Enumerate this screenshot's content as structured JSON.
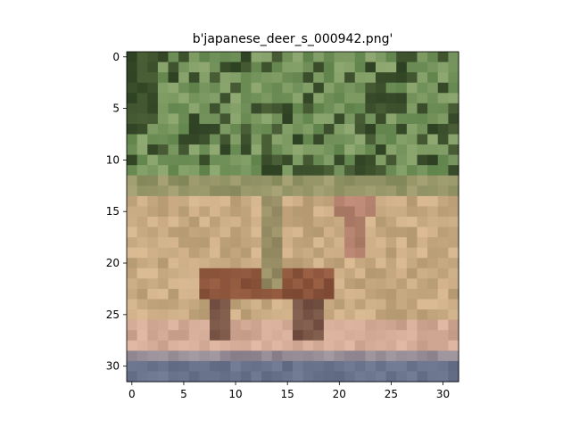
{
  "figure": {
    "title": "b'japanese_deer_s_000942.png'",
    "image_size": [
      32,
      32
    ],
    "x_ticks": [
      "0",
      "5",
      "10",
      "15",
      "20",
      "25",
      "30"
    ],
    "y_ticks": [
      "0",
      "5",
      "10",
      "15",
      "20",
      "25",
      "30"
    ],
    "image_description_colors": {
      "foliage": "#7a9460",
      "dark_foliage": "#3d5530",
      "grass": "#c8a87e",
      "deer": "#8a5638",
      "ground_shadow": "#7a7080",
      "path": "#6e7890"
    }
  }
}
